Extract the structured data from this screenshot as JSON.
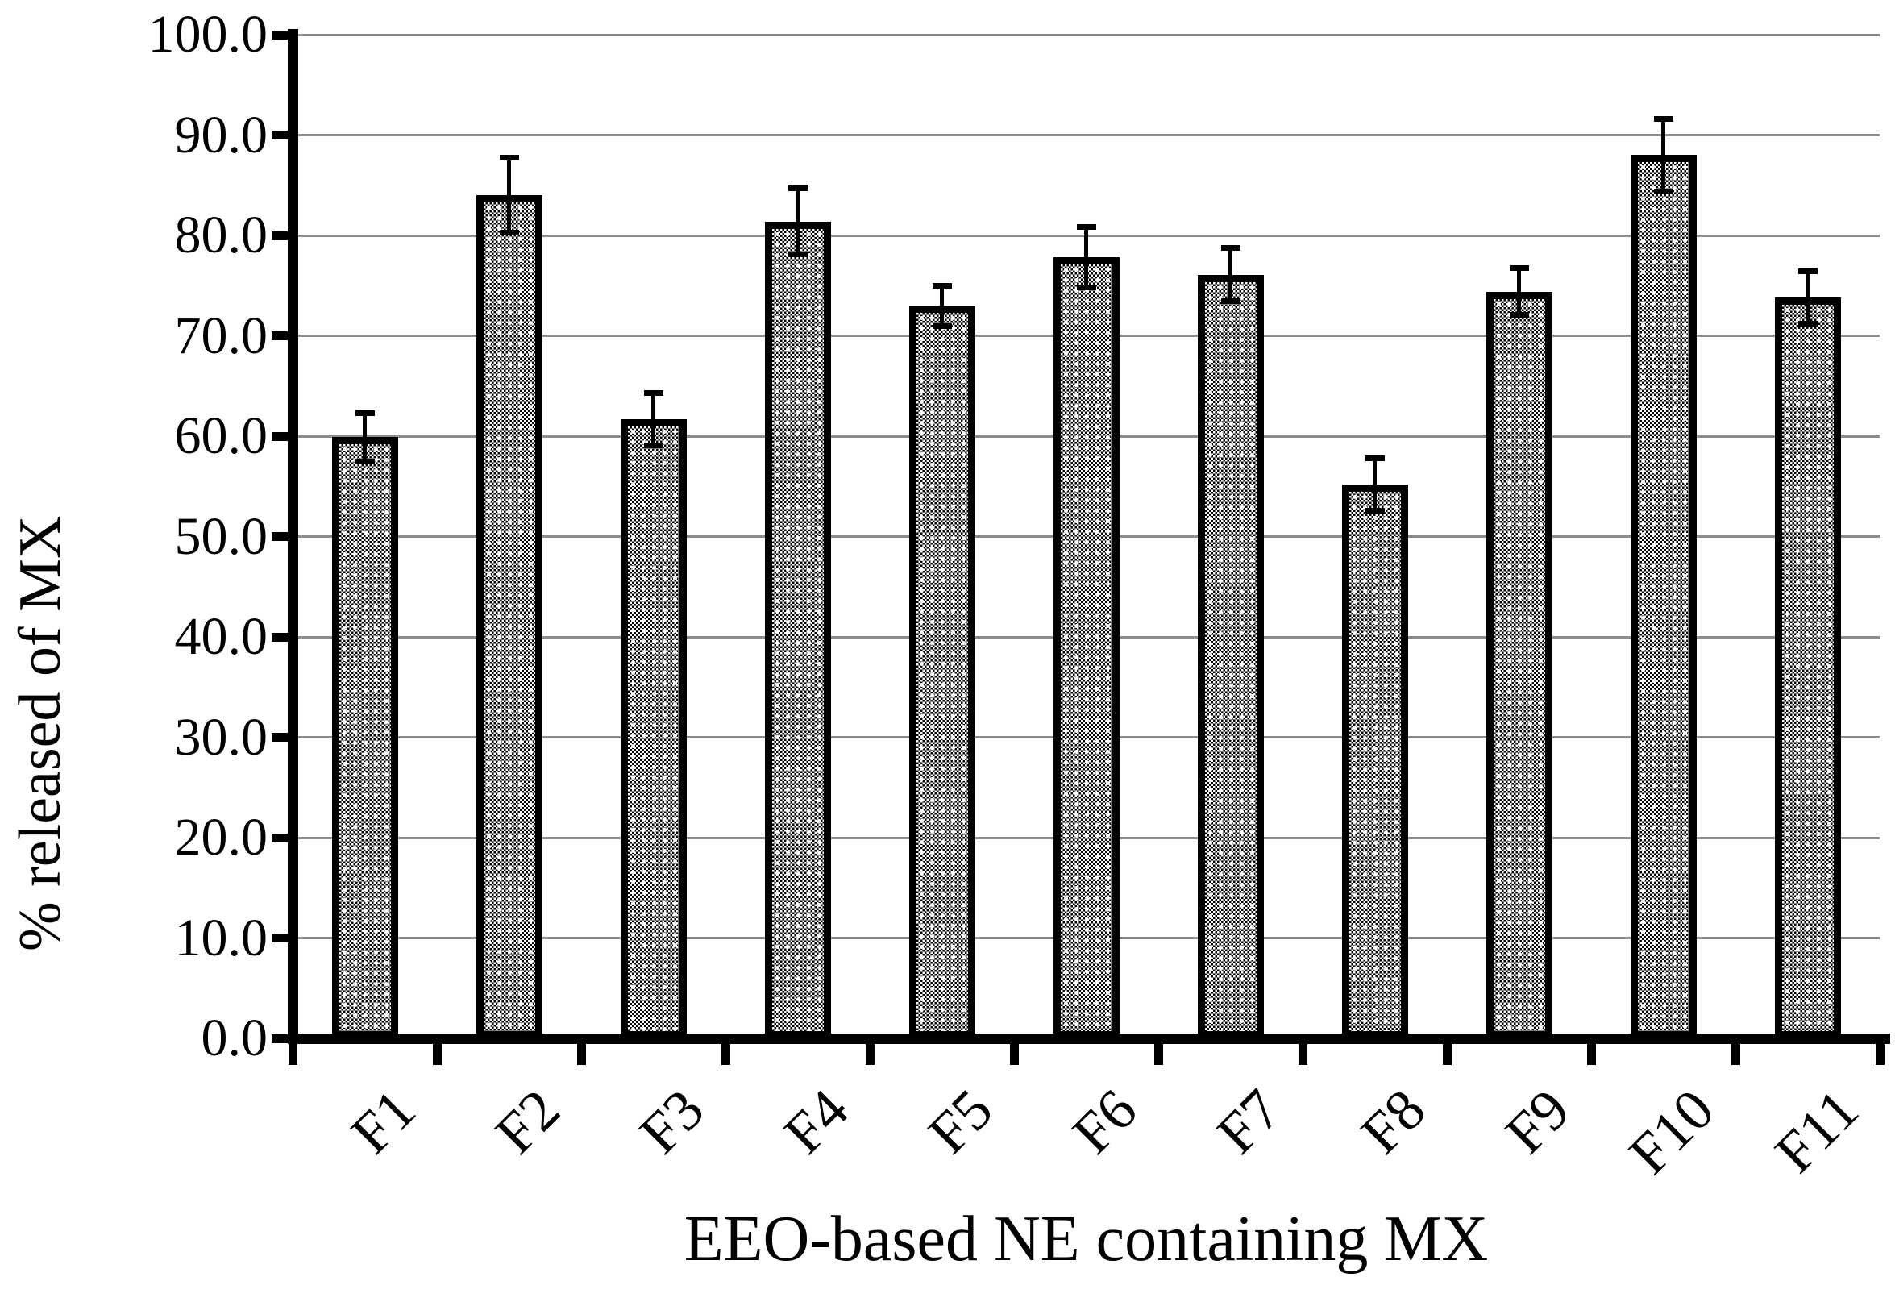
{
  "chart_data": {
    "type": "bar",
    "title": "",
    "xlabel": "EEO-based NE containing MX",
    "ylabel": "% released of MX",
    "categories": [
      "F1",
      "F2",
      "F3",
      "F4",
      "F5",
      "F6",
      "F7",
      "F8",
      "F9",
      "F10",
      "F11"
    ],
    "values": [
      59.9,
      84.0,
      61.7,
      81.4,
      73.0,
      77.8,
      76.1,
      55.2,
      74.4,
      88.0,
      73.8
    ],
    "error_bars": [
      2.7,
      4.0,
      2.9,
      3.6,
      2.3,
      3.3,
      2.9,
      2.9,
      2.6,
      3.9,
      2.9
    ],
    "ylim": [
      0,
      100
    ],
    "ytick_step": 10,
    "y_tick_labels": [
      "100.0",
      "90.0",
      "80.0",
      "70.0",
      "60.0",
      "50.0",
      "40.0",
      "30.0",
      "20.0",
      "10.0",
      "0.0"
    ],
    "grid": "horizontal",
    "legend": "none",
    "bar_fill_pattern": "fine black-white checker with white dot sparkles",
    "bar_border_color": "#000000",
    "gridline_color": "#8c8c8c",
    "axis_color": "#000000",
    "background": "#ffffff"
  }
}
